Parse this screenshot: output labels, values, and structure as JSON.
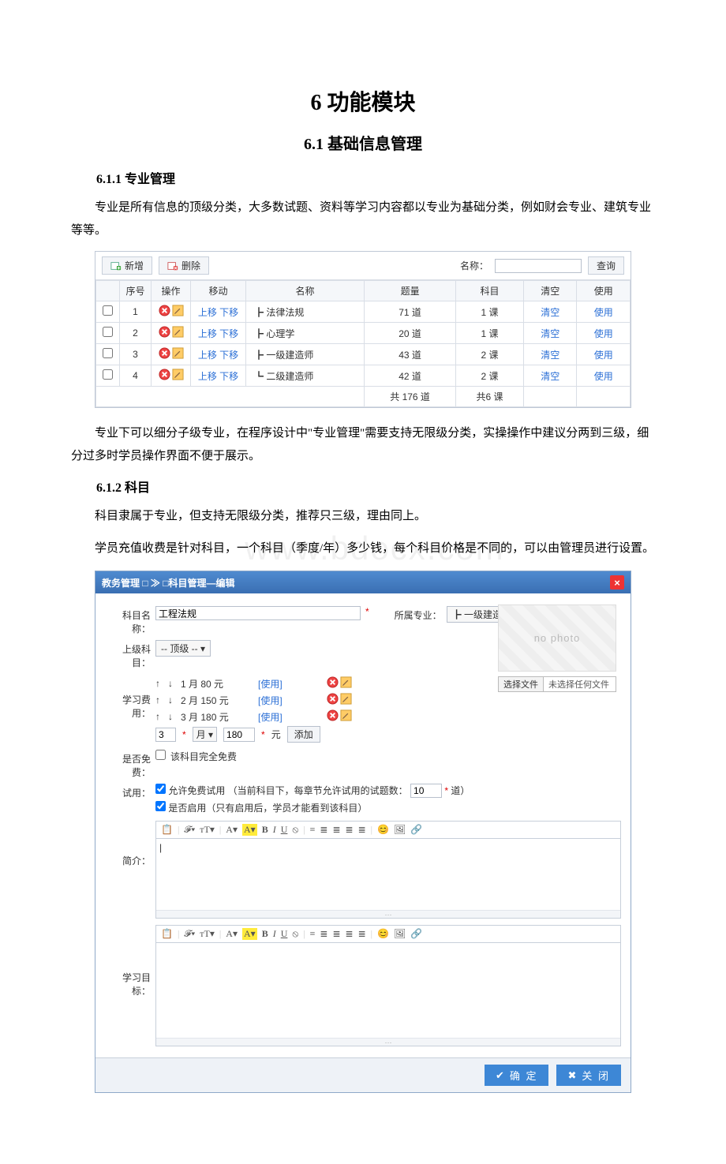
{
  "doc": {
    "h1": "6 功能模块",
    "h2_1": "6.1 基础信息管理",
    "h3_1": "6.1.1 专业管理",
    "p1": "专业是所有信息的顶级分类，大多数试题、资料等学习内容都以专业为基础分类，例如财会专业、建筑专业等等。",
    "p2": "专业下可以细分子级专业，在程序设计中\"专业管理\"需要支持无限级分类，实操操作中建议分两到三级，细分过多时学员操作界面不便于展示。",
    "h3_2": "6.1.2 科目",
    "p3": "科目隶属于专业，但支持无限级分类，推荐只三级，理由同上。",
    "p4": "学员充值收费是针对科目，一个科目（季度/年）多少钱，每个科目价格是不同的，可以由管理员进行设置。",
    "watermark": "www.bdocx.com"
  },
  "colors": {
    "header_blue_top": "#4f8bd0",
    "header_blue_bottom": "#3a6fb2",
    "border": "#c7cfda",
    "link": "#2b6fd6",
    "delete_red": "#e33",
    "required": "#d00",
    "highlight": "#ffeb3b"
  },
  "shot1": {
    "btn_add": "新增",
    "btn_del": "删除",
    "search_label": "名称：",
    "btn_query": "查询",
    "headers": [
      "",
      "序号",
      "操作",
      "移动",
      "名称",
      "题量",
      "科目",
      "清空",
      "使用"
    ],
    "move_up": "上移",
    "move_down": "下移",
    "clear": "清空",
    "use": "使用",
    "rows": [
      {
        "idx": "1",
        "name": "┣ 法律法规",
        "qty": "71 道",
        "subj": "1 课"
      },
      {
        "idx": "2",
        "name": "┣ 心理学",
        "qty": "20 道",
        "subj": "1 课"
      },
      {
        "idx": "3",
        "name": "┣ 一级建造师",
        "qty": "43 道",
        "subj": "2 课"
      },
      {
        "idx": "4",
        "name": "┗ 二级建造师",
        "qty": "42 道",
        "subj": "2 课"
      }
    ],
    "total_qty": "共 176 道",
    "total_subj": "共6 课"
  },
  "shot2": {
    "title": "教务管理 □ ≫ □科目管理—编辑",
    "labels": {
      "name": "科目名称：",
      "belong": "所属专业：",
      "parent": "上级科目：",
      "fee": "学习费用：",
      "free": "是否免费：",
      "trial": "试用：",
      "intro": "简介：",
      "goal": "学习目标："
    },
    "values": {
      "name": "工程法规",
      "belong_selected": "┣ 一级建造师 ▾",
      "parent_selected": "-- 顶级 --    ▾",
      "free_text": "该科目完全免费",
      "trial_cb": "允许免费试用 （当前科目下，每章节允许试用的试题数：",
      "trial_num": "10",
      "trial_unit": "道）",
      "enable_text": "是否启用（只有启用后，学员才能看到该科目）"
    },
    "fees": [
      {
        "months": "1 月",
        "price": "80 元",
        "use": "[使用]"
      },
      {
        "months": "2 月",
        "price": "150 元",
        "use": "[使用]"
      },
      {
        "months": "3 月",
        "price": "180 元",
        "use": "[使用]"
      }
    ],
    "fee_add": {
      "num": "3",
      "unit_sel": "月 ▾",
      "price": "180",
      "yuan": "元",
      "btn": "添加"
    },
    "photo": {
      "placeholder": "no photo",
      "btn": "选择文件",
      "text": "未选择任何文件"
    },
    "rte_toolbar_items": [
      "📋",
      "𝓕▾",
      "ᴛT▾",
      "A▾",
      "A▾",
      "B",
      "I",
      "U",
      "⦸",
      "≡",
      "≣",
      "≣",
      "≣",
      "≣",
      "😊",
      "🖼",
      "🔗"
    ],
    "footer": {
      "ok": "确 定",
      "cancel": "关 闭"
    }
  }
}
